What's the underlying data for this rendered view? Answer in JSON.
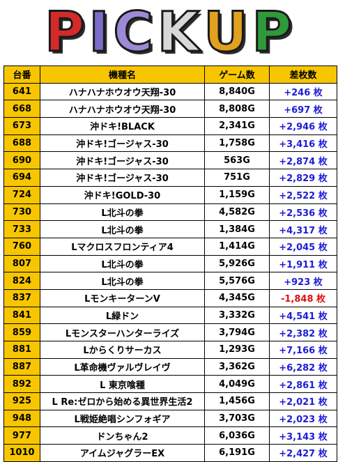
{
  "banner": {
    "letters": [
      {
        "char": "P",
        "color": "#d42a2a"
      },
      {
        "char": "I",
        "color": "#7a6dc9"
      },
      {
        "char": "C",
        "color": "#9c8ad6"
      },
      {
        "char": "K",
        "color": "#d8d8d8"
      },
      {
        "char": "U",
        "color": "#e0a020"
      },
      {
        "char": "P",
        "color": "#2f9a3a"
      }
    ]
  },
  "table": {
    "headers": {
      "machine_no": "台番",
      "model": "機種名",
      "games": "ゲーム数",
      "diff": "差枚数"
    },
    "rows": [
      {
        "no": "641",
        "model": "ハナハナホウオウ天翔-30",
        "games": "8,840G",
        "diff": "+246 枚",
        "negative": false
      },
      {
        "no": "668",
        "model": "ハナハナホウオウ天翔-30",
        "games": "8,808G",
        "diff": "+697 枚",
        "negative": false
      },
      {
        "no": "673",
        "model": "沖ドキ!BLACK",
        "games": "2,341G",
        "diff": "+2,946 枚",
        "negative": false
      },
      {
        "no": "688",
        "model": "沖ドキ!ゴージャス-30",
        "games": "1,758G",
        "diff": "+3,416 枚",
        "negative": false
      },
      {
        "no": "690",
        "model": "沖ドキ!ゴージャス-30",
        "games": "563G",
        "diff": "+2,874 枚",
        "negative": false
      },
      {
        "no": "694",
        "model": "沖ドキ!ゴージャス-30",
        "games": "751G",
        "diff": "+2,829 枚",
        "negative": false
      },
      {
        "no": "724",
        "model": "沖ドキ!GOLD-30",
        "games": "1,159G",
        "diff": "+2,522 枚",
        "negative": false
      },
      {
        "no": "730",
        "model": "L北斗の拳",
        "games": "4,582G",
        "diff": "+2,536 枚",
        "negative": false
      },
      {
        "no": "733",
        "model": "L北斗の拳",
        "games": "1,384G",
        "diff": "+4,317 枚",
        "negative": false
      },
      {
        "no": "760",
        "model": "Lマクロスフロンティア4",
        "games": "1,414G",
        "diff": "+2,045 枚",
        "negative": false
      },
      {
        "no": "807",
        "model": "L北斗の拳",
        "games": "5,926G",
        "diff": "+1,911 枚",
        "negative": false
      },
      {
        "no": "824",
        "model": "L北斗の拳",
        "games": "5,576G",
        "diff": "+923 枚",
        "negative": false
      },
      {
        "no": "837",
        "model": "LモンキーターンV",
        "games": "4,345G",
        "diff": "-1,848 枚",
        "negative": true
      },
      {
        "no": "841",
        "model": "L緑ドン",
        "games": "3,332G",
        "diff": "+4,541 枚",
        "negative": false
      },
      {
        "no": "859",
        "model": "Lモンスターハンターライズ",
        "games": "3,794G",
        "diff": "+2,382 枚",
        "negative": false
      },
      {
        "no": "881",
        "model": "Lからくりサーカス",
        "games": "1,293G",
        "diff": "+7,166 枚",
        "negative": false
      },
      {
        "no": "887",
        "model": "L革命機ヴァルヴレイヴ",
        "games": "3,362G",
        "diff": "+6,282 枚",
        "negative": false
      },
      {
        "no": "892",
        "model": "L 東京喰種",
        "games": "4,049G",
        "diff": "+2,861 枚",
        "negative": false
      },
      {
        "no": "925",
        "model": "L Re:ゼロから始める異世界生活2",
        "games": "1,456G",
        "diff": "+2,021 枚",
        "negative": false
      },
      {
        "no": "948",
        "model": "L戦姫絶唱シンフォギア",
        "games": "3,703G",
        "diff": "+2,023 枚",
        "negative": false
      },
      {
        "no": "977",
        "model": "ドンちゃん2",
        "games": "6,036G",
        "diff": "+3,143 枚",
        "negative": false
      },
      {
        "no": "1010",
        "model": "アイムジャグラーEX",
        "games": "6,191G",
        "diff": "+2,427 枚",
        "negative": false
      }
    ]
  }
}
